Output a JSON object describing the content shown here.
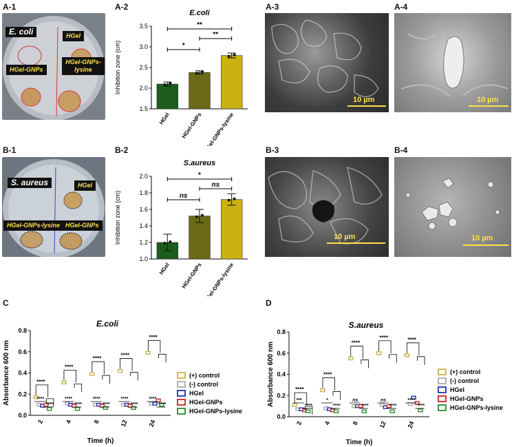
{
  "labels": {
    "a1": "A-1",
    "a2": "A-2",
    "a3": "A-3",
    "a4": "A-4",
    "b1": "B-1",
    "b2": "B-2",
    "b3": "B-3",
    "b4": "B-4",
    "c": "C",
    "d": "D"
  },
  "photo_a": {
    "organism": "E. coli",
    "wells": [
      "HGel",
      "HGel-GNPs",
      "HGel-GNPs-lysine"
    ]
  },
  "photo_b": {
    "organism": "S. aureus",
    "wells": [
      "HGel",
      "HGel-GNPs-lysine",
      "HGel-GNPs"
    ]
  },
  "sem": {
    "scale": "10 µm"
  },
  "chart_data": [
    {
      "id": "A-2",
      "type": "bar",
      "title": "E.coli",
      "categories": [
        "HGel",
        "HGel-GNPs",
        "HGel-GNPs-lysine"
      ],
      "values": [
        2.1,
        2.38,
        2.79
      ],
      "errors": [
        0.05,
        0.04,
        0.06
      ],
      "colors": [
        "#1d5c1d",
        "#6b6a17",
        "#c9b212"
      ],
      "ylabel": "Inhibition zone (cm)",
      "ylim": [
        1.5,
        3.5
      ],
      "yticks": [
        "1.5",
        "2.0",
        "2.5",
        "3.0",
        "3.5"
      ],
      "comparisons": [
        {
          "from": 0,
          "to": 1,
          "label": "*"
        },
        {
          "from": 1,
          "to": 2,
          "label": "**"
        },
        {
          "from": 0,
          "to": 2,
          "label": "**"
        }
      ]
    },
    {
      "id": "B-2",
      "type": "bar",
      "title": "S.aureus",
      "categories": [
        "HGel",
        "HGel-GNPs",
        "HGel-GNPs-lysine"
      ],
      "values": [
        1.2,
        1.52,
        1.72
      ],
      "errors": [
        0.1,
        0.08,
        0.07
      ],
      "colors": [
        "#1d5c1d",
        "#6b6a17",
        "#c9b212"
      ],
      "ylabel": "Inhibition zone (cm)",
      "ylim": [
        1.0,
        2.0
      ],
      "yticks": [
        "1.0",
        "1.2",
        "1.4",
        "1.6",
        "1.8",
        "2.0"
      ],
      "comparisons": [
        {
          "from": 0,
          "to": 1,
          "label": "ns"
        },
        {
          "from": 1,
          "to": 2,
          "label": "ns"
        },
        {
          "from": 0,
          "to": 2,
          "label": "*"
        }
      ]
    },
    {
      "id": "C",
      "type": "scatter",
      "title": "E.coli",
      "xlabel": "Time (h)",
      "ylabel": "Absorbance 600 nm",
      "ylim": [
        0,
        0.8
      ],
      "yticks": [
        "0.0",
        "0.2",
        "0.4",
        "0.6",
        "0.8"
      ],
      "categories": [
        "2",
        "4",
        "8",
        "12",
        "24"
      ],
      "series": [
        {
          "name": "(+) control",
          "color": "#c9b14e",
          "values": [
            0.17,
            0.31,
            0.39,
            0.42,
            0.59
          ]
        },
        {
          "name": "(-) control",
          "color": "#aaaaaa",
          "values": [
            0.1,
            0.11,
            0.1,
            0.1,
            0.11
          ]
        },
        {
          "name": "HGel",
          "color": "#1f2fae",
          "values": [
            0.09,
            0.1,
            0.1,
            0.1,
            0.11
          ]
        },
        {
          "name": "HGel-GNPs",
          "color": "#c42222",
          "values": [
            0.1,
            0.09,
            0.09,
            0.09,
            0.14
          ]
        },
        {
          "name": "HGel-GNPs-lysine",
          "color": "#2e8b2e",
          "values": [
            0.06,
            0.06,
            0.07,
            0.07,
            0.1
          ]
        }
      ],
      "significance": "****"
    },
    {
      "id": "D",
      "type": "scatter",
      "title": "S.aureus",
      "xlabel": "Time (h)",
      "ylabel": "Absorbance 600 nm",
      "ylim": [
        0,
        0.8
      ],
      "yticks": [
        "0.0",
        "0.2",
        "0.4",
        "0.6",
        "0.8"
      ],
      "categories": [
        "2",
        "4",
        "8",
        "12",
        "24"
      ],
      "series": [
        {
          "name": "(+) control",
          "color": "#c9b14e",
          "values": [
            0.11,
            0.25,
            0.55,
            0.6,
            0.58
          ]
        },
        {
          "name": "(-) control",
          "color": "#aaaaaa",
          "values": [
            0.07,
            0.08,
            0.1,
            0.11,
            0.12
          ]
        },
        {
          "name": "HGel",
          "color": "#1f2fae",
          "values": [
            0.07,
            0.07,
            0.1,
            0.09,
            0.18
          ]
        },
        {
          "name": "HGel-GNPs",
          "color": "#c42222",
          "values": [
            0.06,
            0.06,
            0.1,
            0.1,
            0.13
          ]
        },
        {
          "name": "HGel-GNPs-lysine",
          "color": "#2e8b2e",
          "values": [
            0.05,
            0.05,
            0.05,
            0.05,
            0.06
          ]
        }
      ],
      "bracket_labels": [
        [
          "****",
          "***",
          "****"
        ],
        [
          "****",
          "*",
          "****"
        ],
        [
          "****",
          "ns",
          "****"
        ],
        [
          "****",
          "ns",
          "****"
        ],
        [
          "****",
          "****",
          "****"
        ]
      ]
    }
  ]
}
